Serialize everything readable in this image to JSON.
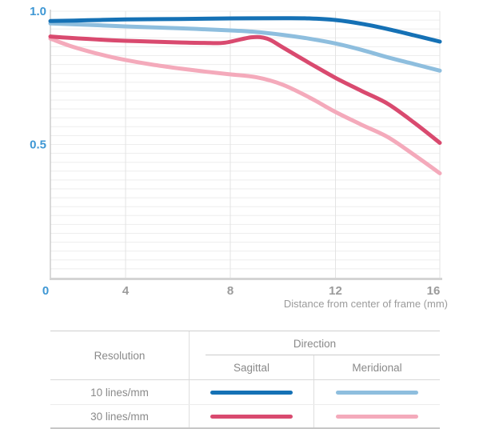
{
  "chart_data": {
    "type": "line",
    "title": "",
    "xlabel": "Distance from center of frame (mm)",
    "ylabel": "",
    "xlim": [
      0,
      16
    ],
    "ylim": [
      0,
      1
    ],
    "grid": {
      "h_divisions": 30,
      "v_values": [
        4,
        8,
        12,
        16
      ],
      "h_color": "#ededed",
      "v_color": "#e3e3e3"
    },
    "axis": {
      "y_line_color": "#c9c9c9",
      "x_line_color": "#d4d4d4",
      "tick_blue": "#3e97d4",
      "tick_gray": "#9b9b9b"
    },
    "x_ticks": [
      {
        "label": "0",
        "value": 0,
        "color": "#3e97d4",
        "dx": -6
      },
      {
        "label": "4",
        "value": 4,
        "color": "#9b9b9b",
        "dx": 0
      },
      {
        "label": "8",
        "value": 8,
        "color": "#9b9b9b",
        "dx": 0
      },
      {
        "label": "12",
        "value": 12,
        "color": "#9b9b9b",
        "dx": 0
      },
      {
        "label": "16",
        "value": 16,
        "color": "#9b9b9b",
        "dx": -8
      }
    ],
    "y_ticks": [
      {
        "label": "1.0",
        "value": 1.0,
        "color": "#3e97d4"
      },
      {
        "label": "0.5",
        "value": 0.5,
        "color": "#3e97d4"
      }
    ],
    "legend_position": "table-below",
    "series": [
      {
        "name": "10 lines/mm Sagittal",
        "color": "#1571b5",
        "points": [
          [
            0,
            0.963
          ],
          [
            2,
            0.966
          ],
          [
            4,
            0.969
          ],
          [
            6,
            0.971
          ],
          [
            8,
            0.973
          ],
          [
            10,
            0.974
          ],
          [
            11,
            0.973
          ],
          [
            12,
            0.967
          ],
          [
            13,
            0.953
          ],
          [
            14,
            0.933
          ],
          [
            15,
            0.91
          ],
          [
            16,
            0.886
          ]
        ]
      },
      {
        "name": "10 lines/mm Meridional",
        "color": "#8ebede",
        "points": [
          [
            0,
            0.954
          ],
          [
            2,
            0.949
          ],
          [
            4,
            0.943
          ],
          [
            6,
            0.936
          ],
          [
            8,
            0.928
          ],
          [
            9,
            0.922
          ],
          [
            10,
            0.911
          ],
          [
            11,
            0.897
          ],
          [
            12,
            0.879
          ],
          [
            13,
            0.855
          ],
          [
            14,
            0.827
          ],
          [
            15,
            0.802
          ],
          [
            16,
            0.777
          ]
        ]
      },
      {
        "name": "30 lines/mm Sagittal",
        "color": "#d94a6f",
        "points": [
          [
            0,
            0.905
          ],
          [
            1,
            0.9
          ],
          [
            2,
            0.896
          ],
          [
            3,
            0.892
          ],
          [
            4,
            0.889
          ],
          [
            5,
            0.886
          ],
          [
            6,
            0.883
          ],
          [
            7,
            0.881
          ],
          [
            7.8,
            0.882
          ],
          [
            8.8,
            0.902
          ],
          [
            9.4,
            0.897
          ],
          [
            10,
            0.864
          ],
          [
            11,
            0.806
          ],
          [
            12,
            0.75
          ],
          [
            13,
            0.701
          ],
          [
            14,
            0.653
          ],
          [
            15,
            0.583
          ],
          [
            16,
            0.506
          ]
        ]
      },
      {
        "name": "30 lines/mm Meridional",
        "color": "#f4aabb",
        "points": [
          [
            0,
            0.897
          ],
          [
            1,
            0.871
          ],
          [
            2,
            0.85
          ],
          [
            3,
            0.832
          ],
          [
            4,
            0.817
          ],
          [
            5,
            0.8
          ],
          [
            6,
            0.786
          ],
          [
            7,
            0.774
          ],
          [
            8,
            0.763
          ],
          [
            9,
            0.752
          ],
          [
            10,
            0.724
          ],
          [
            11,
            0.677
          ],
          [
            12,
            0.622
          ],
          [
            13,
            0.574
          ],
          [
            14,
            0.528
          ],
          [
            15,
            0.462
          ],
          [
            16,
            0.392
          ]
        ]
      }
    ]
  },
  "legend_table": {
    "resolution_header": "Resolution",
    "direction_header": "Direction",
    "sagittal_header": "Sagittal",
    "meridional_header": "Meridional",
    "rows": [
      {
        "label": "10 lines/mm",
        "sagittal_color": "#1571b5",
        "meridional_color": "#8ebede"
      },
      {
        "label": "30 lines/mm",
        "sagittal_color": "#d94a6f",
        "meridional_color": "#f4aabb"
      }
    ]
  }
}
